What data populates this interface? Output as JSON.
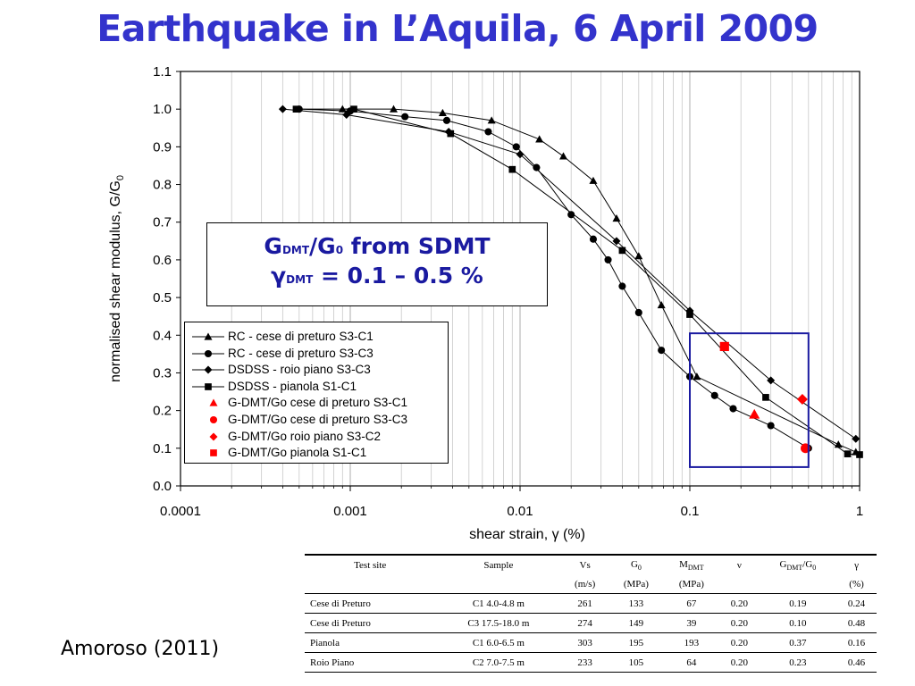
{
  "slide": {
    "title": "Earthquake in L’Aquila, 6 April 2009",
    "citation": "Amoroso (2011)"
  },
  "callout": {
    "line1_main": "G",
    "line1_sub": "DMT",
    "line1_mid": "/G",
    "line1_sub2": "0",
    "line1_end": " from SDMT",
    "line2_main": "γ",
    "line2_sub": "DMT",
    "line2_end": " = 0.1 – 0.5 %"
  },
  "colors": {
    "title": "#3333cc",
    "highlight_box": "#1a1aa0",
    "dmt_points": "#ff0000",
    "series_lines": "#000000"
  },
  "chart_data": {
    "type": "line",
    "xscale": "log",
    "xlim": [
      0.0001,
      1
    ],
    "ylim": [
      0.0,
      1.1
    ],
    "xticks": [
      "0.0001",
      "0.001",
      "0.01",
      "0.1",
      "1"
    ],
    "yticks": [
      "0.0",
      "0.1",
      "0.2",
      "0.3",
      "0.4",
      "0.5",
      "0.6",
      "0.7",
      "0.8",
      "0.9",
      "1.0",
      "1.1"
    ],
    "xlabel": "shear strain, γ (%)",
    "ylabel_main": "normalised shear modulus, G/G",
    "ylabel_sub": "0",
    "grid": "vertical-log",
    "legend_position": "left-middle",
    "series": [
      {
        "name": "RC - cese di preturo S3-C1",
        "marker": "triangle",
        "color": "#000000",
        "x": [
          0.0009,
          0.0018,
          0.0035,
          0.0068,
          0.013,
          0.018,
          0.027,
          0.037,
          0.05,
          0.068,
          0.11,
          0.75,
          0.95
        ],
        "y": [
          1.0,
          1.0,
          0.99,
          0.97,
          0.92,
          0.875,
          0.81,
          0.71,
          0.61,
          0.48,
          0.29,
          0.11,
          0.09
        ]
      },
      {
        "name": "RC - cese di preturo S3-C3",
        "marker": "circle",
        "color": "#000000",
        "x": [
          0.0005,
          0.001,
          0.0021,
          0.0037,
          0.0065,
          0.0095,
          0.0125,
          0.02,
          0.027,
          0.033,
          0.04,
          0.05,
          0.068,
          0.1,
          0.14,
          0.18,
          0.3,
          0.5
        ],
        "y": [
          1.0,
          0.995,
          0.98,
          0.97,
          0.94,
          0.9,
          0.845,
          0.72,
          0.655,
          0.6,
          0.53,
          0.46,
          0.36,
          0.29,
          0.24,
          0.205,
          0.16,
          0.1
        ]
      },
      {
        "name": "DSDSS - roio piano S3-C3",
        "marker": "diamond",
        "color": "#000000",
        "x": [
          0.0004,
          0.00095,
          0.0038,
          0.01,
          0.037,
          0.1,
          0.3,
          0.95
        ],
        "y": [
          1.0,
          0.985,
          0.94,
          0.88,
          0.65,
          0.465,
          0.28,
          0.125
        ]
      },
      {
        "name": "DSDSS - pianola S1-C1",
        "marker": "square",
        "color": "#000000",
        "x": [
          0.00048,
          0.00105,
          0.0039,
          0.009,
          0.04,
          0.1,
          0.28,
          0.85,
          1.0
        ],
        "y": [
          1.0,
          1.0,
          0.935,
          0.84,
          0.625,
          0.455,
          0.235,
          0.085,
          0.083
        ]
      },
      {
        "name": "G-DMT/Go cese di preturo S3-C1",
        "marker": "triangle",
        "color": "#ff0000",
        "x": [
          0.24
        ],
        "y": [
          0.19
        ]
      },
      {
        "name": "G-DMT/Go cese di preturo S3-C3",
        "marker": "circle",
        "color": "#ff0000",
        "x": [
          0.48
        ],
        "y": [
          0.1
        ]
      },
      {
        "name": "G-DMT/Go roio piano S3-C2",
        "marker": "diamond",
        "color": "#ff0000",
        "x": [
          0.46
        ],
        "y": [
          0.23
        ]
      },
      {
        "name": "G-DMT/Go pianola S1-C1",
        "marker": "square",
        "color": "#ff0000",
        "x": [
          0.16
        ],
        "y": [
          0.37
        ]
      }
    ],
    "highlight_box": {
      "x": [
        0.1,
        0.5
      ],
      "y": [
        0.05,
        0.405
      ]
    }
  },
  "table": {
    "headers": [
      {
        "top": "Test site",
        "bottom": ""
      },
      {
        "top": "Sample",
        "bottom": ""
      },
      {
        "top": "Vs",
        "bottom": "(m/s)"
      },
      {
        "top": "G",
        "top_sub": "0",
        "bottom": "(MPa)"
      },
      {
        "top": "M",
        "top_sub": "DMT",
        "bottom": "(MPa)"
      },
      {
        "top": "ν",
        "bottom": ""
      },
      {
        "top": "G",
        "top_sub": "DMT",
        "top_mid": "/G",
        "top_sub2": "0",
        "bottom": ""
      },
      {
        "top": "γ",
        "bottom": "(%)"
      }
    ],
    "rows": [
      [
        "Cese di Preturo",
        "C1 4.0-4.8 m",
        "261",
        "133",
        "67",
        "0.20",
        "0.19",
        "0.24"
      ],
      [
        "Cese di Preturo",
        "C3 17.5-18.0 m",
        "274",
        "149",
        "39",
        "0.20",
        "0.10",
        "0.48"
      ],
      [
        "Pianola",
        "C1 6.0-6.5 m",
        "303",
        "195",
        "193",
        "0.20",
        "0.37",
        "0.16"
      ],
      [
        "Roio Piano",
        "C2 7.0-7.5 m",
        "233",
        "105",
        "64",
        "0.20",
        "0.23",
        "0.46"
      ]
    ]
  }
}
